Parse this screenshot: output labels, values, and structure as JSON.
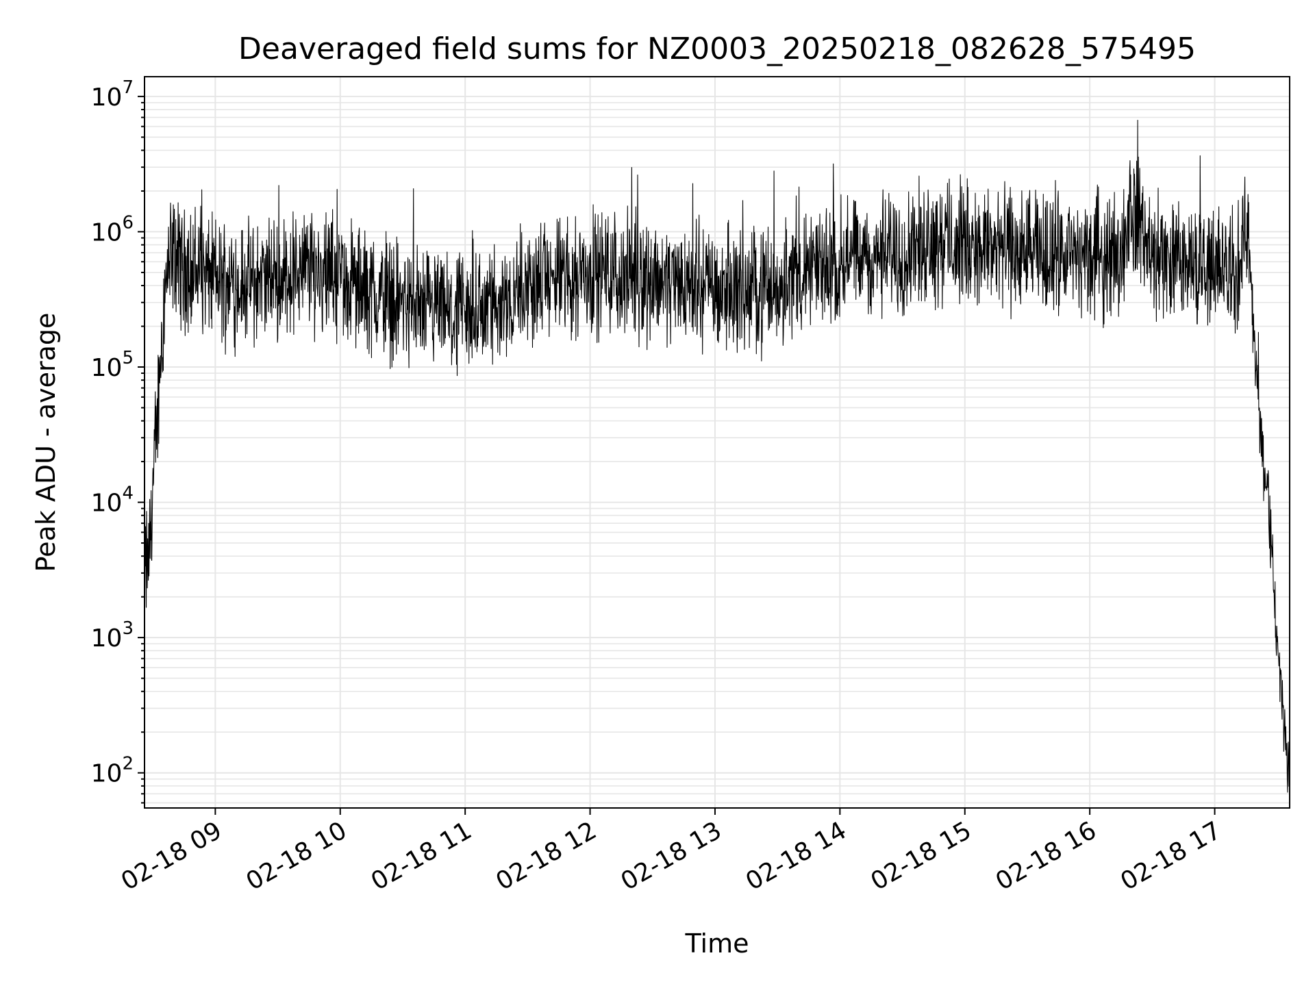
{
  "chart_data": {
    "type": "line",
    "title": "Deaveraged field sums for NZ0003_20250218_082628_575495",
    "xlabel": "Time",
    "ylabel": "Peak ADU - average",
    "yscale": "log",
    "ylim": [
      55,
      14000000
    ],
    "xlim": [
      "2025-02-18 08:26",
      "2025-02-18 17:36"
    ],
    "grid": true,
    "x_tick_labels": [
      "02-18 09",
      "02-18 10",
      "02-18 11",
      "02-18 12",
      "02-18 13",
      "02-18 14",
      "02-18 15",
      "02-18 16",
      "02-18 17"
    ],
    "y_tick_labels": [
      {
        "base": "10",
        "exp": "2"
      },
      {
        "base": "10",
        "exp": "3"
      },
      {
        "base": "10",
        "exp": "4"
      },
      {
        "base": "10",
        "exp": "5"
      },
      {
        "base": "10",
        "exp": "6"
      },
      {
        "base": "10",
        "exp": "7"
      }
    ],
    "line_color": "#000000",
    "grid_color": "#e6e6e6",
    "series": [
      {
        "values_note_free": true,
        "x": [
          "2025-02-18 08:26",
          "2025-02-18 08:28",
          "2025-02-18 08:30",
          "2025-02-18 08:32",
          "2025-02-18 08:34",
          "2025-02-18 08:36",
          "2025-02-18 08:38",
          "2025-02-18 08:40",
          "2025-02-18 08:45",
          "2025-02-18 08:50",
          "2025-02-18 09:00",
          "2025-02-18 09:15",
          "2025-02-18 09:30",
          "2025-02-18 09:45",
          "2025-02-18 10:00",
          "2025-02-18 10:15",
          "2025-02-18 10:30",
          "2025-02-18 10:45",
          "2025-02-18 11:00",
          "2025-02-18 11:15",
          "2025-02-18 11:30",
          "2025-02-18 11:45",
          "2025-02-18 12:00",
          "2025-02-18 12:15",
          "2025-02-18 12:30",
          "2025-02-18 12:45",
          "2025-02-18 13:00",
          "2025-02-18 13:15",
          "2025-02-18 13:30",
          "2025-02-18 13:45",
          "2025-02-18 14:00",
          "2025-02-18 14:15",
          "2025-02-18 14:30",
          "2025-02-18 14:45",
          "2025-02-18 15:00",
          "2025-02-18 15:15",
          "2025-02-18 15:30",
          "2025-02-18 15:45",
          "2025-02-18 16:00",
          "2025-02-18 16:15",
          "2025-02-18 16:20",
          "2025-02-18 16:30",
          "2025-02-18 16:45",
          "2025-02-18 17:00",
          "2025-02-18 17:10",
          "2025-02-18 17:16",
          "2025-02-18 17:20",
          "2025-02-18 17:23",
          "2025-02-18 17:26",
          "2025-02-18 17:29",
          "2025-02-18 17:32",
          "2025-02-18 17:35"
        ],
        "y": [
          3000,
          4000,
          12000,
          40000,
          150000,
          400000,
          600000,
          650000,
          550000,
          500000,
          450000,
          400000,
          450000,
          550000,
          450000,
          350000,
          300000,
          250000,
          220000,
          300000,
          400000,
          450000,
          500000,
          480000,
          450000,
          420000,
          400000,
          350000,
          400000,
          500000,
          600000,
          650000,
          700000,
          900000,
          800000,
          750000,
          700000,
          650000,
          650000,
          700000,
          1500000,
          700000,
          600000,
          550000,
          500000,
          1000000,
          100000,
          20000,
          10000,
          1500,
          400,
          100
        ]
      }
    ]
  }
}
